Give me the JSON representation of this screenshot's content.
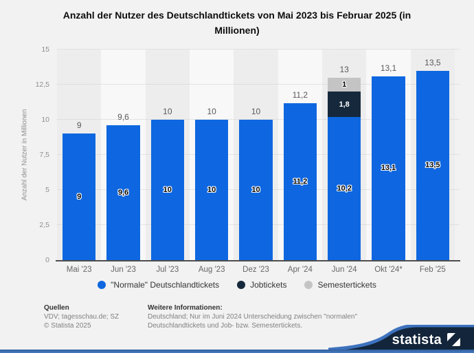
{
  "title_line1": "Anzahl der Nutzer des Deutschlandtickets von Mai 2023 bis Februar 2025 (in",
  "title_line2": "Millionen)",
  "chart_data": {
    "type": "bar",
    "stacked": true,
    "title": "Anzahl der Nutzer des Deutschlandtickets von Mai 2023 bis Februar 2025 (in Millionen)",
    "xlabel": "",
    "ylabel": "Anzahl der Nutzer in Millionen",
    "ylim": [
      0,
      15
    ],
    "grid": "horizontal-dotted",
    "legend_position": "bottom",
    "yticks": [
      {
        "value": 0,
        "label": "0"
      },
      {
        "value": 2.5,
        "label": "2,5"
      },
      {
        "value": 5,
        "label": "5"
      },
      {
        "value": 7.5,
        "label": "7,5"
      },
      {
        "value": 10,
        "label": "10"
      },
      {
        "value": 12.5,
        "label": "12,5"
      },
      {
        "value": 15,
        "label": "15"
      }
    ],
    "categories": [
      "Mai '23",
      "Jun '23",
      "Jul '23",
      "Aug '23",
      "Dez '23",
      "Apr '24",
      "Jun '24",
      "Okt '24*",
      "Feb '25"
    ],
    "series_meta": {
      "normale": {
        "name": "\"Normale\" Deutschlandtickets",
        "color": "#0e67e0",
        "label_color": "#000000",
        "label_halo": "#ffffff"
      },
      "jobtickets": {
        "name": "Jobtickets",
        "color": "#16293c",
        "label_color": "#ffffff",
        "label_halo": "#16293c"
      },
      "semester": {
        "name": "Semestertickets",
        "color": "#c4c4c4",
        "label_color": "#000000",
        "label_halo": "#ffffff"
      }
    },
    "legend_order": [
      "normale",
      "jobtickets",
      "semester"
    ],
    "bars": [
      {
        "category": "Mai '23",
        "total": 9,
        "total_label": "9",
        "segments": [
          {
            "series": "normale",
            "value": 9,
            "label": "9"
          }
        ]
      },
      {
        "category": "Jun '23",
        "total": 9.6,
        "total_label": "9,6",
        "segments": [
          {
            "series": "normale",
            "value": 9.6,
            "label": "9,6"
          }
        ]
      },
      {
        "category": "Jul '23",
        "total": 10,
        "total_label": "10",
        "segments": [
          {
            "series": "normale",
            "value": 10,
            "label": "10"
          }
        ]
      },
      {
        "category": "Aug '23",
        "total": 10,
        "total_label": "10",
        "segments": [
          {
            "series": "normale",
            "value": 10,
            "label": "10"
          }
        ]
      },
      {
        "category": "Dez '23",
        "total": 10,
        "total_label": "10",
        "segments": [
          {
            "series": "normale",
            "value": 10,
            "label": "10"
          }
        ]
      },
      {
        "category": "Apr '24",
        "total": 11.2,
        "total_label": "11,2",
        "segments": [
          {
            "series": "normale",
            "value": 11.2,
            "label": "11,2"
          }
        ]
      },
      {
        "category": "Jun '24",
        "total": 13,
        "total_label": "13",
        "segments": [
          {
            "series": "normale",
            "value": 10.2,
            "label": "10,2"
          },
          {
            "series": "jobtickets",
            "value": 1.8,
            "label": "1,8"
          },
          {
            "series": "semester",
            "value": 1,
            "label": "1"
          }
        ]
      },
      {
        "category": "Okt '24*",
        "total": 13.1,
        "total_label": "13,1",
        "segments": [
          {
            "series": "normale",
            "value": 13.1,
            "label": "13,1"
          }
        ]
      },
      {
        "category": "Feb '25",
        "total": 13.5,
        "total_label": "13,5",
        "segments": [
          {
            "series": "normale",
            "value": 13.5,
            "label": "13,5"
          }
        ]
      }
    ]
  },
  "footer": {
    "sources_heading": "Quellen",
    "sources_line1": "VDV; tagesschau.de; SZ",
    "sources_line2": "© Statista 2025",
    "info_heading": "Weitere Informationen:",
    "info_line1": "Deutschland; Nur im Juni 2024 Unterscheidung zwischen \"normalen\"",
    "info_line2": "Deutschlandtickets und Job- bzw. Semestertickets."
  },
  "branding": {
    "logo_text": "statista"
  },
  "colors": {
    "page_bg": "#f2f2f2",
    "stripe_dark": "#ededed",
    "stripe_light": "#f8f8f8",
    "gridline": "#cfcfcf",
    "axis_line": "#4d4d4d",
    "bar_blue": "#0e67e0",
    "bar_navy": "#16293c",
    "bar_gray": "#c4c4c4",
    "accent_bar_blue": "#3d72bd",
    "logo_navy": "#12253a"
  }
}
